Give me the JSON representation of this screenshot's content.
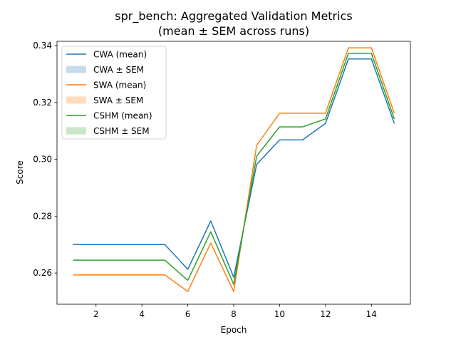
{
  "chart_data": {
    "type": "line",
    "title": "spr_bench: Aggregated Validation Metrics",
    "subtitle": "(mean ± SEM across runs)",
    "xlabel": "Epoch",
    "ylabel": "Score",
    "xlim": [
      0.3,
      15.7
    ],
    "ylim": [
      0.249,
      0.3415
    ],
    "x": [
      1,
      2,
      3,
      4,
      5,
      6,
      7,
      8,
      9,
      10,
      11,
      12,
      13,
      14,
      15
    ],
    "x_ticks": [
      2,
      4,
      6,
      8,
      10,
      12,
      14
    ],
    "y_ticks": [
      0.26,
      0.28,
      0.3,
      0.32,
      0.34
    ],
    "y_tick_labels": [
      "0.26",
      "0.28",
      "0.30",
      "0.32",
      "0.34"
    ],
    "grid": false,
    "legend_position": "top-left",
    "series": [
      {
        "name": "CWA (mean)",
        "band_name": "CWA ± SEM",
        "color": "#1f77b4",
        "band_color": "#c6dbea",
        "values": [
          0.27,
          0.27,
          0.27,
          0.27,
          0.27,
          0.2613,
          0.2783,
          0.2585,
          0.2982,
          0.3068,
          0.3068,
          0.3126,
          0.3353,
          0.3353,
          0.3126
        ]
      },
      {
        "name": "SWA (mean)",
        "band_name": "SWA ± SEM",
        "color": "#ff7f0e",
        "band_color": "#ffdcbd",
        "values": [
          0.2593,
          0.2593,
          0.2593,
          0.2593,
          0.2593,
          0.2535,
          0.2705,
          0.2535,
          0.3049,
          0.3162,
          0.3162,
          0.3162,
          0.3392,
          0.3392,
          0.3162
        ]
      },
      {
        "name": "CSHM (mean)",
        "band_name": "CSHM ± SEM",
        "color": "#2ca02c",
        "band_color": "#c9e6c9",
        "values": [
          0.2645,
          0.2645,
          0.2645,
          0.2645,
          0.2645,
          0.2574,
          0.2745,
          0.256,
          0.3011,
          0.3114,
          0.3114,
          0.3142,
          0.3373,
          0.3373,
          0.3142
        ]
      }
    ]
  }
}
